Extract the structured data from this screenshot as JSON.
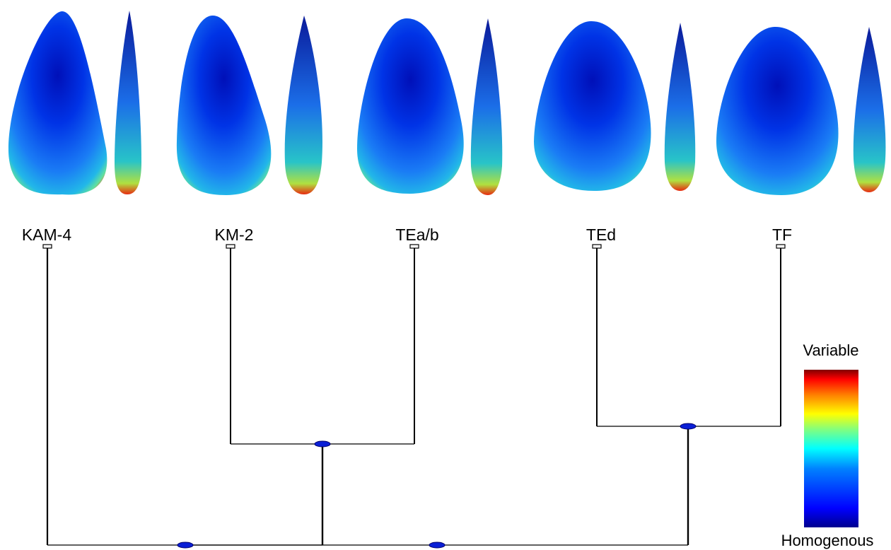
{
  "taxa": [
    {
      "label": "KAM-4"
    },
    {
      "label": "KM-2"
    },
    {
      "label": "TEa/b"
    },
    {
      "label": "TEd"
    },
    {
      "label": "TF"
    }
  ],
  "tree": {
    "clades": [
      {
        "members": [
          "KM-2",
          "TEa/b"
        ]
      },
      {
        "members": [
          "TEd",
          "TF"
        ]
      },
      {
        "members": [
          "KAM-4",
          "KM-2",
          "TEa/b"
        ]
      },
      {
        "members": [
          "KAM-4",
          "KM-2",
          "TEa/b",
          "TEd",
          "TF"
        ]
      }
    ],
    "node_color": "#0a1fd6"
  },
  "legend": {
    "top_label": "Variable",
    "bottom_label": "Homogenous",
    "colormap": [
      "#00008f",
      "#0000ff",
      "#0080ff",
      "#00ffff",
      "#80ff80",
      "#ffff00",
      "#ff8000",
      "#ff0000",
      "#800000"
    ]
  }
}
